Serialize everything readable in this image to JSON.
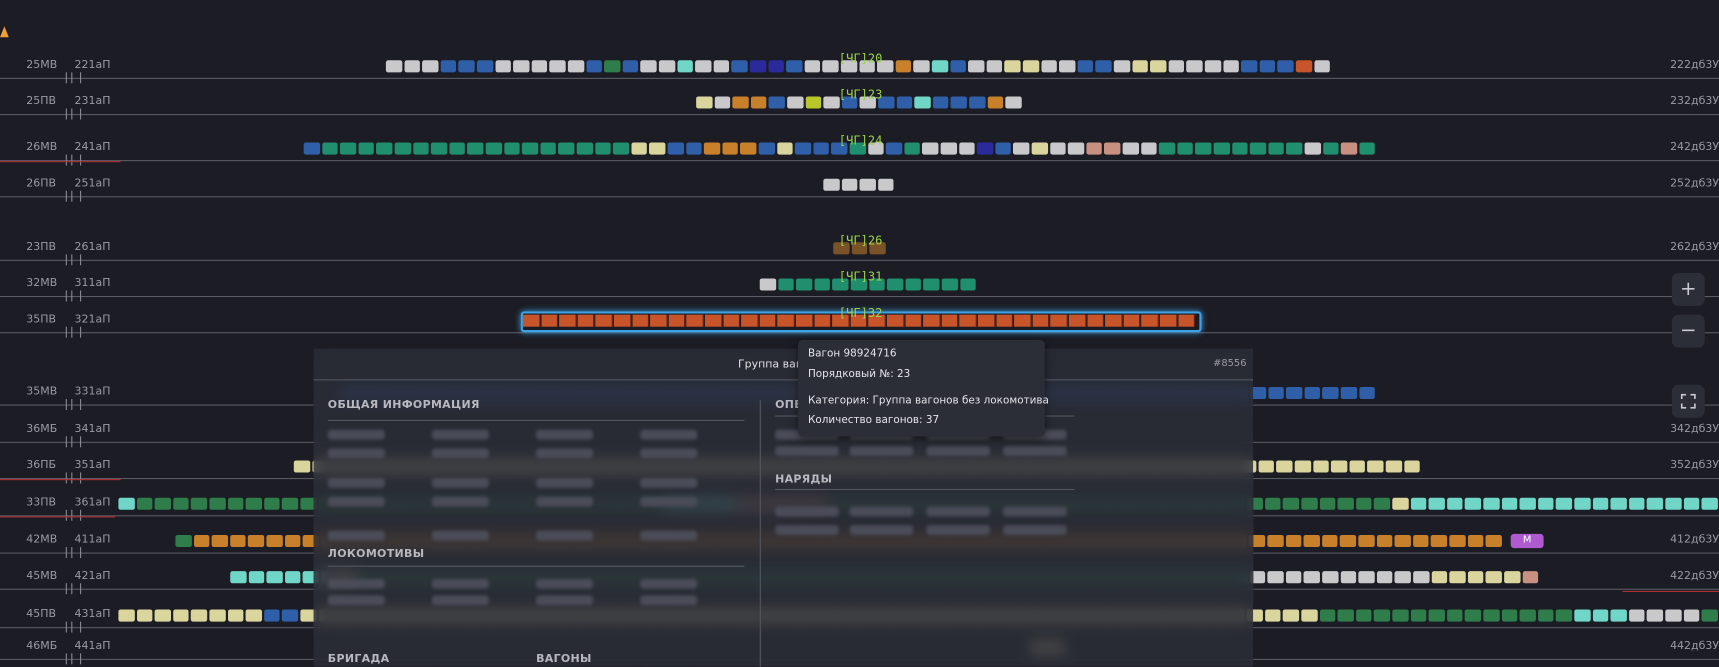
{
  "tracks": [
    {
      "left": "25МВ",
      "code": "221аП",
      "right": "222дб3У",
      "train": "[ЧГ]20"
    },
    {
      "left": "25ПВ",
      "code": "231аП",
      "right": "232дб3У",
      "train": "[ЧГ]23"
    },
    {
      "left": "26МВ",
      "code": "241аП",
      "right": "242дб3У",
      "train": "[ЧГ]24"
    },
    {
      "left": "26ПВ",
      "code": "251аП",
      "right": "252дб3У"
    },
    {
      "left": "23ПВ",
      "code": "261аП",
      "right": "262дб3У",
      "train": "[ЧГ]26"
    },
    {
      "left": "32МВ",
      "code": "311аП",
      "train": "[ЧГ]31"
    },
    {
      "left": "35ПВ",
      "code": "321аП",
      "train": "[ЧГ]32"
    },
    {
      "left": "35МВ",
      "code": "331аП"
    },
    {
      "left": "36МБ",
      "code": "341аП",
      "right": "342дб3У"
    },
    {
      "left": "36ПБ",
      "code": "351аП",
      "right": "352дб3У"
    },
    {
      "left": "33ПВ",
      "code": "361аП"
    },
    {
      "left": "42МВ",
      "code": "411аП",
      "right": "412дб3У",
      "badge": "М"
    },
    {
      "left": "45МВ",
      "code": "421аП",
      "right": "422дб3У"
    },
    {
      "left": "45ПВ",
      "code": "431аП"
    },
    {
      "left": "46МБ",
      "code": "441аП",
      "right": "442дб3У"
    }
  ],
  "panel": {
    "title": "Группа вагонов",
    "id": "#8556",
    "sections": [
      "ОБЩАЯ ИНФОРМАЦИЯ",
      "ОПЕРАЦИИ",
      "НАРЯДЫ",
      "ЛОКОМОТИВЫ",
      "БРИГАДА",
      "ВАГОНЫ"
    ]
  },
  "tooltip": {
    "wagon": "Вагон 98924716",
    "order": "Порядковый №: 23",
    "category": "Категория: Группа вагонов без локомотива",
    "count": "Количество вагонов: 37"
  },
  "controls": [
    "+",
    "−"
  ]
}
